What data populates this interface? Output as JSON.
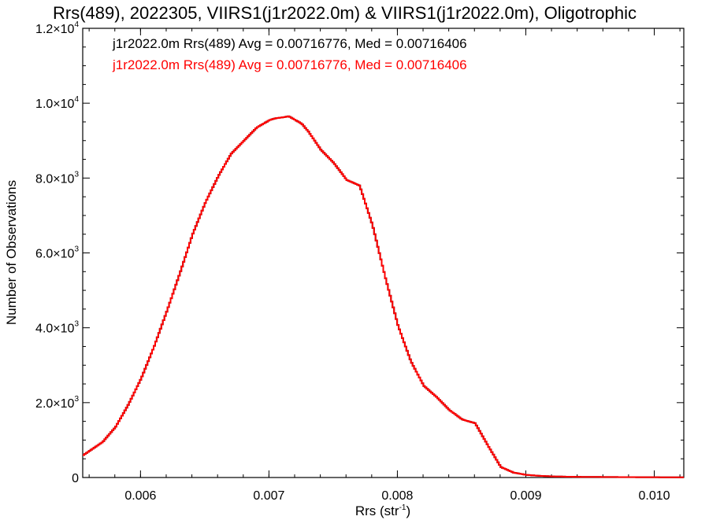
{
  "chart_data": {
    "type": "line",
    "title": "Rrs(489), 2022305, VIIRS1(j1r2022.0m) & VIIRS1(j1r2022.0m), Oligotrophic",
    "xlabel": "Rrs (str",
    "xlabel_exp": "-1",
    "xlabel_close": ")",
    "ylabel": "Number of Observations",
    "xlim": [
      0.00555,
      0.01023
    ],
    "ylim": [
      0,
      12000
    ],
    "x_ticks": [
      0.006,
      0.007,
      0.008,
      0.009,
      0.01
    ],
    "x_tick_labels": [
      "0.006",
      "0.007",
      "0.008",
      "0.009",
      "0.010"
    ],
    "y_ticks": [
      {
        "value": 0,
        "mant": "0",
        "exp": ""
      },
      {
        "value": 2000,
        "mant": "2.0×10",
        "exp": "3"
      },
      {
        "value": 4000,
        "mant": "4.0×10",
        "exp": "3"
      },
      {
        "value": 6000,
        "mant": "6.0×10",
        "exp": "3"
      },
      {
        "value": 8000,
        "mant": "8.0×10",
        "exp": "3"
      },
      {
        "value": 10000,
        "mant": "1.0×10",
        "exp": "4"
      },
      {
        "value": 12000,
        "mant": "1.2×10",
        "exp": "4"
      }
    ],
    "annotations": [
      {
        "text": "j1r2022.0m Rrs(489) Avg = 0.00716776, Med = 0.00716406",
        "color": "#000000"
      },
      {
        "text": "j1r2022.0m Rrs(489) Avg = 0.00716776, Med = 0.00716406",
        "color": "#ff0000"
      }
    ],
    "series": [
      {
        "color": "#000000",
        "x": [
          0.00555,
          0.0057,
          0.0058,
          0.0059,
          0.006,
          0.0061,
          0.0062,
          0.0063,
          0.0064,
          0.0065,
          0.0066,
          0.0067,
          0.0068,
          0.0069,
          0.007,
          0.00705,
          0.0071,
          0.00715,
          0.0072,
          0.00725,
          0.0073,
          0.0074,
          0.0075,
          0.0076,
          0.0077,
          0.0078,
          0.0079,
          0.008,
          0.0081,
          0.0082,
          0.0083,
          0.0084,
          0.0085,
          0.0086,
          0.0087,
          0.0088,
          0.0089,
          0.009,
          0.0091,
          0.0092,
          0.0093,
          0.0095,
          0.0098,
          0.01023
        ],
        "y": [
          600,
          950,
          1350,
          1950,
          2650,
          3500,
          4450,
          5450,
          6500,
          7350,
          8050,
          8650,
          9000,
          9350,
          9550,
          9600,
          9620,
          9650,
          9550,
          9450,
          9250,
          8750,
          8400,
          7950,
          7800,
          6750,
          5350,
          4050,
          3100,
          2450,
          2150,
          1800,
          1550,
          1450,
          850,
          280,
          130,
          70,
          45,
          30,
          22,
          15,
          10,
          5
        ]
      },
      {
        "color": "#ff0000",
        "x": [
          0.00555,
          0.0057,
          0.0058,
          0.0059,
          0.006,
          0.0061,
          0.0062,
          0.0063,
          0.0064,
          0.0065,
          0.0066,
          0.0067,
          0.0068,
          0.0069,
          0.007,
          0.00705,
          0.0071,
          0.00715,
          0.0072,
          0.00725,
          0.0073,
          0.0074,
          0.0075,
          0.0076,
          0.0077,
          0.0078,
          0.0079,
          0.008,
          0.0081,
          0.0082,
          0.0083,
          0.0084,
          0.0085,
          0.0086,
          0.0087,
          0.0088,
          0.0089,
          0.009,
          0.0091,
          0.0092,
          0.0093,
          0.0095,
          0.0098,
          0.01023
        ],
        "y": [
          600,
          950,
          1350,
          1950,
          2650,
          3500,
          4450,
          5450,
          6500,
          7350,
          8050,
          8650,
          9000,
          9350,
          9550,
          9600,
          9620,
          9650,
          9550,
          9450,
          9250,
          8750,
          8400,
          7950,
          7800,
          6750,
          5350,
          4050,
          3100,
          2450,
          2150,
          1800,
          1550,
          1450,
          850,
          280,
          130,
          70,
          45,
          30,
          22,
          15,
          10,
          5
        ]
      }
    ]
  }
}
